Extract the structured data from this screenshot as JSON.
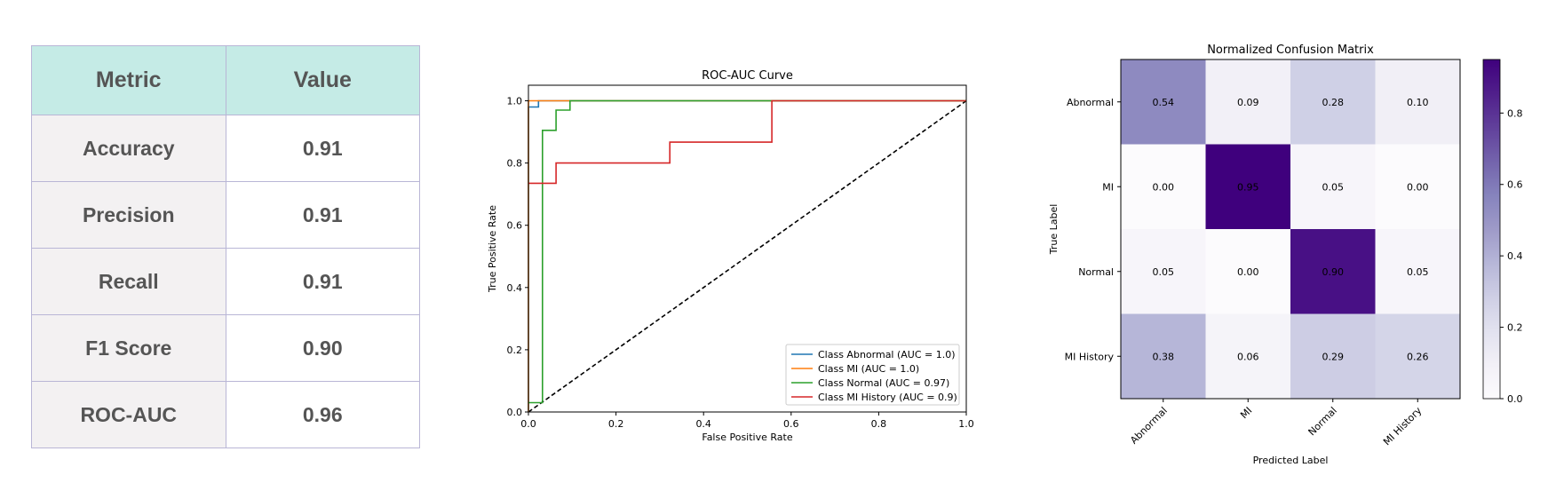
{
  "table": {
    "headers": [
      "Metric",
      "Value"
    ],
    "rows": [
      {
        "metric": "Accuracy",
        "value": "0.91"
      },
      {
        "metric": "Precision",
        "value": "0.91"
      },
      {
        "metric": "Recall",
        "value": "0.91"
      },
      {
        "metric": "F1 Score",
        "value": "0.90"
      },
      {
        "metric": "ROC-AUC",
        "value": "0.96"
      }
    ],
    "header_bg": "#c5ebe6",
    "metric_bg": "#f3f1f2",
    "border_color": "#b9b6d6",
    "text_color": "#555555"
  },
  "chart_data": [
    {
      "type": "line",
      "title": "ROC-AUC Curve",
      "xlabel": "False Positive Rate",
      "ylabel": "True Positive Rate",
      "xlim": [
        0,
        1
      ],
      "ylim": [
        0,
        1.05
      ],
      "xticks": [
        "0.0",
        "0.2",
        "0.4",
        "0.6",
        "0.8",
        "1.0"
      ],
      "yticks": [
        "0.0",
        "0.2",
        "0.4",
        "0.6",
        "0.8",
        "1.0"
      ],
      "grid": false,
      "legend_position": "lower-right",
      "series": [
        {
          "name": "Class Abnormal (AUC = 1.0)",
          "color": "#1f77b4",
          "x": [
            0,
            0,
            0.023,
            0.023,
            1
          ],
          "y": [
            0,
            0.98,
            0.98,
            1.0,
            1.0
          ]
        },
        {
          "name": "Class MI (AUC = 1.0)",
          "color": "#ff7f0e",
          "x": [
            0,
            0,
            1
          ],
          "y": [
            0,
            1.0,
            1.0
          ]
        },
        {
          "name": "Class Normal (AUC = 0.97)",
          "color": "#2ca02c",
          "x": [
            0,
            0.032,
            0.032,
            0.063,
            0.063,
            0.095,
            0.095,
            1
          ],
          "y": [
            0.03,
            0.03,
            0.905,
            0.905,
            0.97,
            0.97,
            1.0,
            1.0
          ]
        },
        {
          "name": "Class MI History (AUC = 0.9)",
          "color": "#d62728",
          "x": [
            0,
            0.063,
            0.063,
            0.323,
            0.323,
            0.556,
            0.556,
            1
          ],
          "y": [
            0.735,
            0.735,
            0.8,
            0.8,
            0.867,
            0.867,
            1.0,
            1.0
          ]
        }
      ],
      "reference_line": {
        "x": [
          0,
          1
        ],
        "y": [
          0,
          1
        ],
        "style": "dashed",
        "color": "#000000"
      }
    },
    {
      "type": "heatmap",
      "title": "Normalized Confusion Matrix",
      "xlabel": "Predicted Label",
      "ylabel": "True Label",
      "x_categories": [
        "Abnormal",
        "MI",
        "Normal",
        "MI History"
      ],
      "y_categories": [
        "Abnormal",
        "MI",
        "Normal",
        "MI History"
      ],
      "values": [
        [
          0.54,
          0.09,
          0.28,
          0.1
        ],
        [
          0.0,
          0.95,
          0.05,
          0.0
        ],
        [
          0.05,
          0.0,
          0.9,
          0.05
        ],
        [
          0.38,
          0.06,
          0.29,
          0.26
        ]
      ],
      "colormap": "Purples",
      "colorbar_range": [
        0,
        0.95
      ],
      "colorbar_ticks": [
        "0.0",
        "0.2",
        "0.4",
        "0.6",
        "0.8"
      ]
    }
  ]
}
